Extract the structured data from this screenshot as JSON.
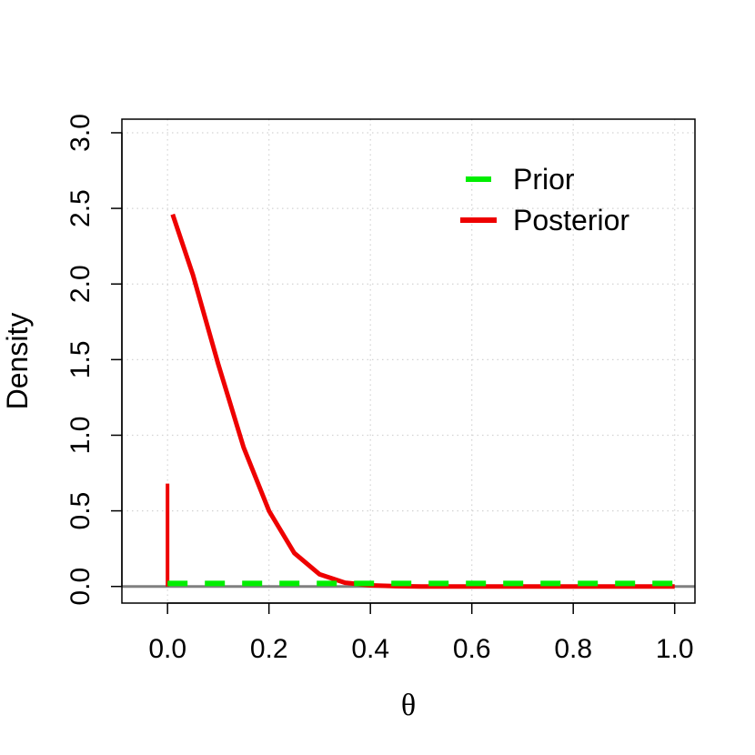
{
  "chart_data": {
    "type": "line",
    "xlabel": "θ",
    "ylabel": "Density",
    "xlim": [
      -0.09,
      1.04
    ],
    "ylim": [
      -0.11,
      3.09
    ],
    "xticks": [
      0.0,
      0.2,
      0.4,
      0.6,
      0.8,
      1.0
    ],
    "xtick_labels": [
      "0.0",
      "0.2",
      "0.4",
      "0.6",
      "0.8",
      "1.0"
    ],
    "yticks": [
      0.0,
      0.5,
      1.0,
      1.5,
      2.0,
      2.5,
      3.0
    ],
    "ytick_labels": [
      "0.0",
      "0.5",
      "1.0",
      "1.5",
      "2.0",
      "2.5",
      "3.0"
    ],
    "grid": true,
    "legend_position": "top-right",
    "reference_line": {
      "y": 0,
      "color": "#808080"
    },
    "series": [
      {
        "name": "Prior",
        "color": "#00ee00",
        "style": "dashed",
        "x": [
          0.0,
          1.0
        ],
        "y": [
          0.02,
          0.02
        ]
      },
      {
        "name": "Posterior",
        "color": "#ee0000",
        "style": "solid",
        "x": [
          0.01,
          0.05,
          0.1,
          0.15,
          0.2,
          0.25,
          0.3,
          0.35,
          0.4,
          0.45,
          0.5,
          0.6,
          0.8,
          1.0
        ],
        "y": [
          2.46,
          2.06,
          1.47,
          0.92,
          0.5,
          0.22,
          0.08,
          0.025,
          0.007,
          0.002,
          0.0,
          0.0,
          0.0,
          0.0
        ]
      }
    ],
    "spike": {
      "x": 0.0,
      "y": 0.68,
      "color": "#ee0000"
    }
  }
}
